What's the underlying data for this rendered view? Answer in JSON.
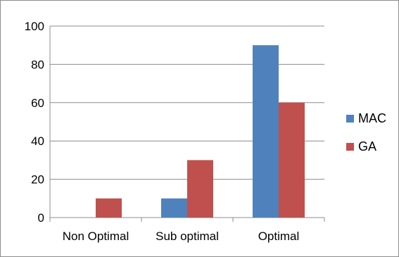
{
  "chart_data": {
    "type": "bar",
    "title": "",
    "xlabel": "",
    "ylabel": "",
    "categories": [
      "Non Optimal",
      "Sub optimal",
      "Optimal"
    ],
    "series": [
      {
        "name": "MAC",
        "values": [
          0,
          10,
          90
        ],
        "color": "#4F81BD"
      },
      {
        "name": "GA",
        "values": [
          10,
          30,
          60
        ],
        "color": "#C0504D"
      }
    ],
    "ylim": [
      0,
      100
    ],
    "yticks": [
      0,
      20,
      40,
      60,
      80,
      100
    ],
    "grid": true,
    "legend_position": "right"
  }
}
